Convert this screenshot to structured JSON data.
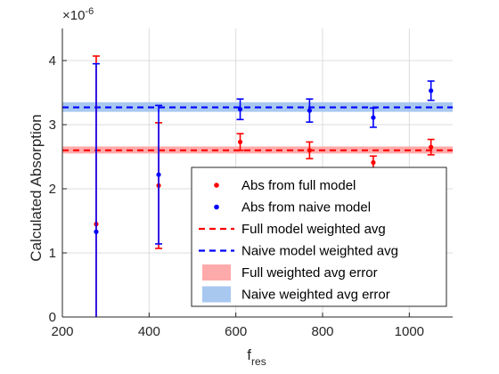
{
  "chart_data": {
    "type": "scatter",
    "xlabel_base": "f",
    "xlabel_sub": "res",
    "ylabel": "Calculated Absorption",
    "y_exponent": "×10",
    "y_exponent_power": "-6",
    "xlim": [
      200,
      1100
    ],
    "ylim": [
      0,
      4.5
    ],
    "xticks": [
      200,
      400,
      600,
      800,
      1000
    ],
    "yticks": [
      0,
      1,
      2,
      3,
      4
    ],
    "grid": true,
    "legend_position": "lower-right",
    "colors": {
      "full": "#ff0000",
      "naive": "#0000ff",
      "full_band": "#ffaaaa",
      "naive_band": "#a8c8f0"
    },
    "series": [
      {
        "name": "Abs from full model",
        "color_key": "full",
        "x": [
          278,
          422,
          610,
          770,
          917,
          1050
        ],
        "y": [
          1.45,
          2.05,
          2.73,
          2.6,
          2.41,
          2.65
        ],
        "err": [
          2.62,
          0.98,
          0.13,
          0.13,
          0.1,
          0.12
        ]
      },
      {
        "name": "Abs from naive model",
        "color_key": "naive",
        "x": [
          278,
          422,
          610,
          770,
          917,
          1050
        ],
        "y": [
          1.33,
          2.22,
          3.24,
          3.22,
          3.11,
          3.53
        ],
        "err": [
          2.62,
          1.08,
          0.16,
          0.18,
          0.15,
          0.15
        ]
      }
    ],
    "weighted_avg": [
      {
        "name": "Full model weighted avg",
        "color_key": "full",
        "value": 2.6
      },
      {
        "name": "Naive model weighted avg",
        "color_key": "naive",
        "value": 3.27
      }
    ],
    "weighted_err": [
      {
        "name": "Full weighted avg error",
        "color_key": "full_band",
        "low": 2.55,
        "high": 2.66
      },
      {
        "name": "Naive weighted avg error",
        "color_key": "naive_band",
        "low": 3.2,
        "high": 3.35
      }
    ],
    "legend": [
      {
        "label": "Abs from full model",
        "kind": "dot",
        "color_key": "full"
      },
      {
        "label": "Abs from naive model",
        "kind": "dot",
        "color_key": "naive"
      },
      {
        "label": "Full model weighted avg",
        "kind": "dash",
        "color_key": "full"
      },
      {
        "label": "Naive model weighted avg",
        "kind": "dash",
        "color_key": "naive"
      },
      {
        "label": "Full weighted avg error",
        "kind": "patch",
        "color_key": "full_band"
      },
      {
        "label": "Naive weighted avg error",
        "kind": "patch",
        "color_key": "naive_band"
      }
    ]
  }
}
